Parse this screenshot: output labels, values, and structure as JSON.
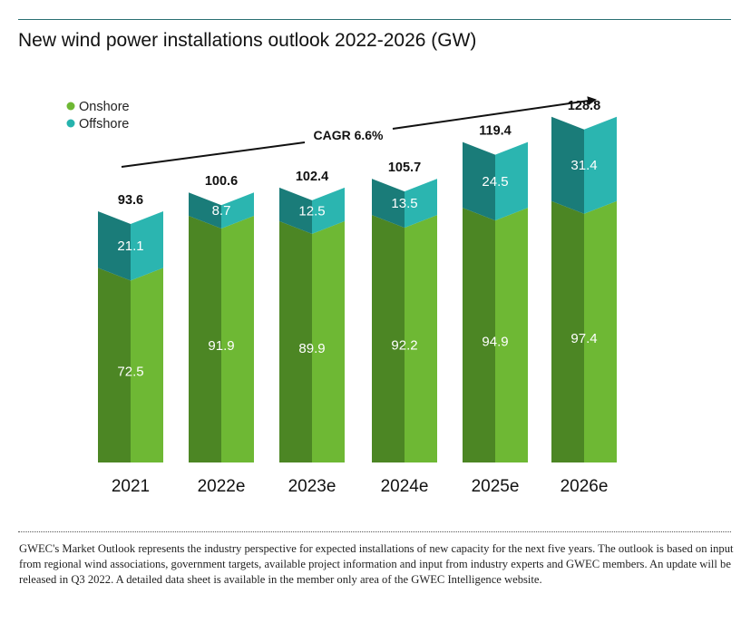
{
  "page": {
    "title": "New wind power installations outlook 2022-2026 (GW)",
    "footnote": "GWEC's Market Outlook represents the industry perspective for expected installations of new capacity for the next five years. The outlook is based on input from regional wind associations, government targets, available project information and input from industry experts and GWEC members. An update will be released in Q3 2022. A detailed data sheet is available in the member only area of the GWEC Intelligence website."
  },
  "colors": {
    "onshore_light": "#6eb834",
    "onshore_dark": "#4c8624",
    "onshore_cap": "#89cc50",
    "offshore_light": "#2bb5b0",
    "offshore_dark": "#1a7c79",
    "offshore_cap": "#44c9c3",
    "legend_onshore": "#6eb834",
    "legend_offshore": "#26b3ad"
  },
  "chart_data": {
    "type": "bar",
    "stacked": true,
    "title": "New wind power installations outlook 2022-2026 (GW)",
    "categories": [
      "2021",
      "2022e",
      "2023e",
      "2024e",
      "2025e",
      "2026e"
    ],
    "series": [
      {
        "name": "Onshore",
        "values": [
          72.5,
          91.9,
          89.9,
          92.2,
          94.9,
          97.4
        ]
      },
      {
        "name": "Offshore",
        "values": [
          21.1,
          8.7,
          12.5,
          13.5,
          24.5,
          31.4
        ]
      }
    ],
    "totals": [
      93.6,
      100.6,
      102.4,
      105.7,
      119.4,
      128.8
    ],
    "value_labels": {
      "Onshore": [
        "72.5",
        "91.9",
        "89.9",
        "92.2",
        "94.9",
        "97.4"
      ],
      "Offshore": [
        "21.1",
        "8.7",
        "12.5",
        "13.5",
        "24.5",
        "31.4"
      ],
      "totals": [
        "93.6",
        "100.6",
        "102.4",
        "105.7",
        "119.4",
        "128.8"
      ]
    },
    "legend": [
      "Onshore",
      "Offshore"
    ],
    "legend_position": "top-left",
    "annotation": "CAGR 6.6%",
    "ylim": [
      0,
      135
    ],
    "xlabel": "",
    "ylabel": "",
    "grid": false
  }
}
